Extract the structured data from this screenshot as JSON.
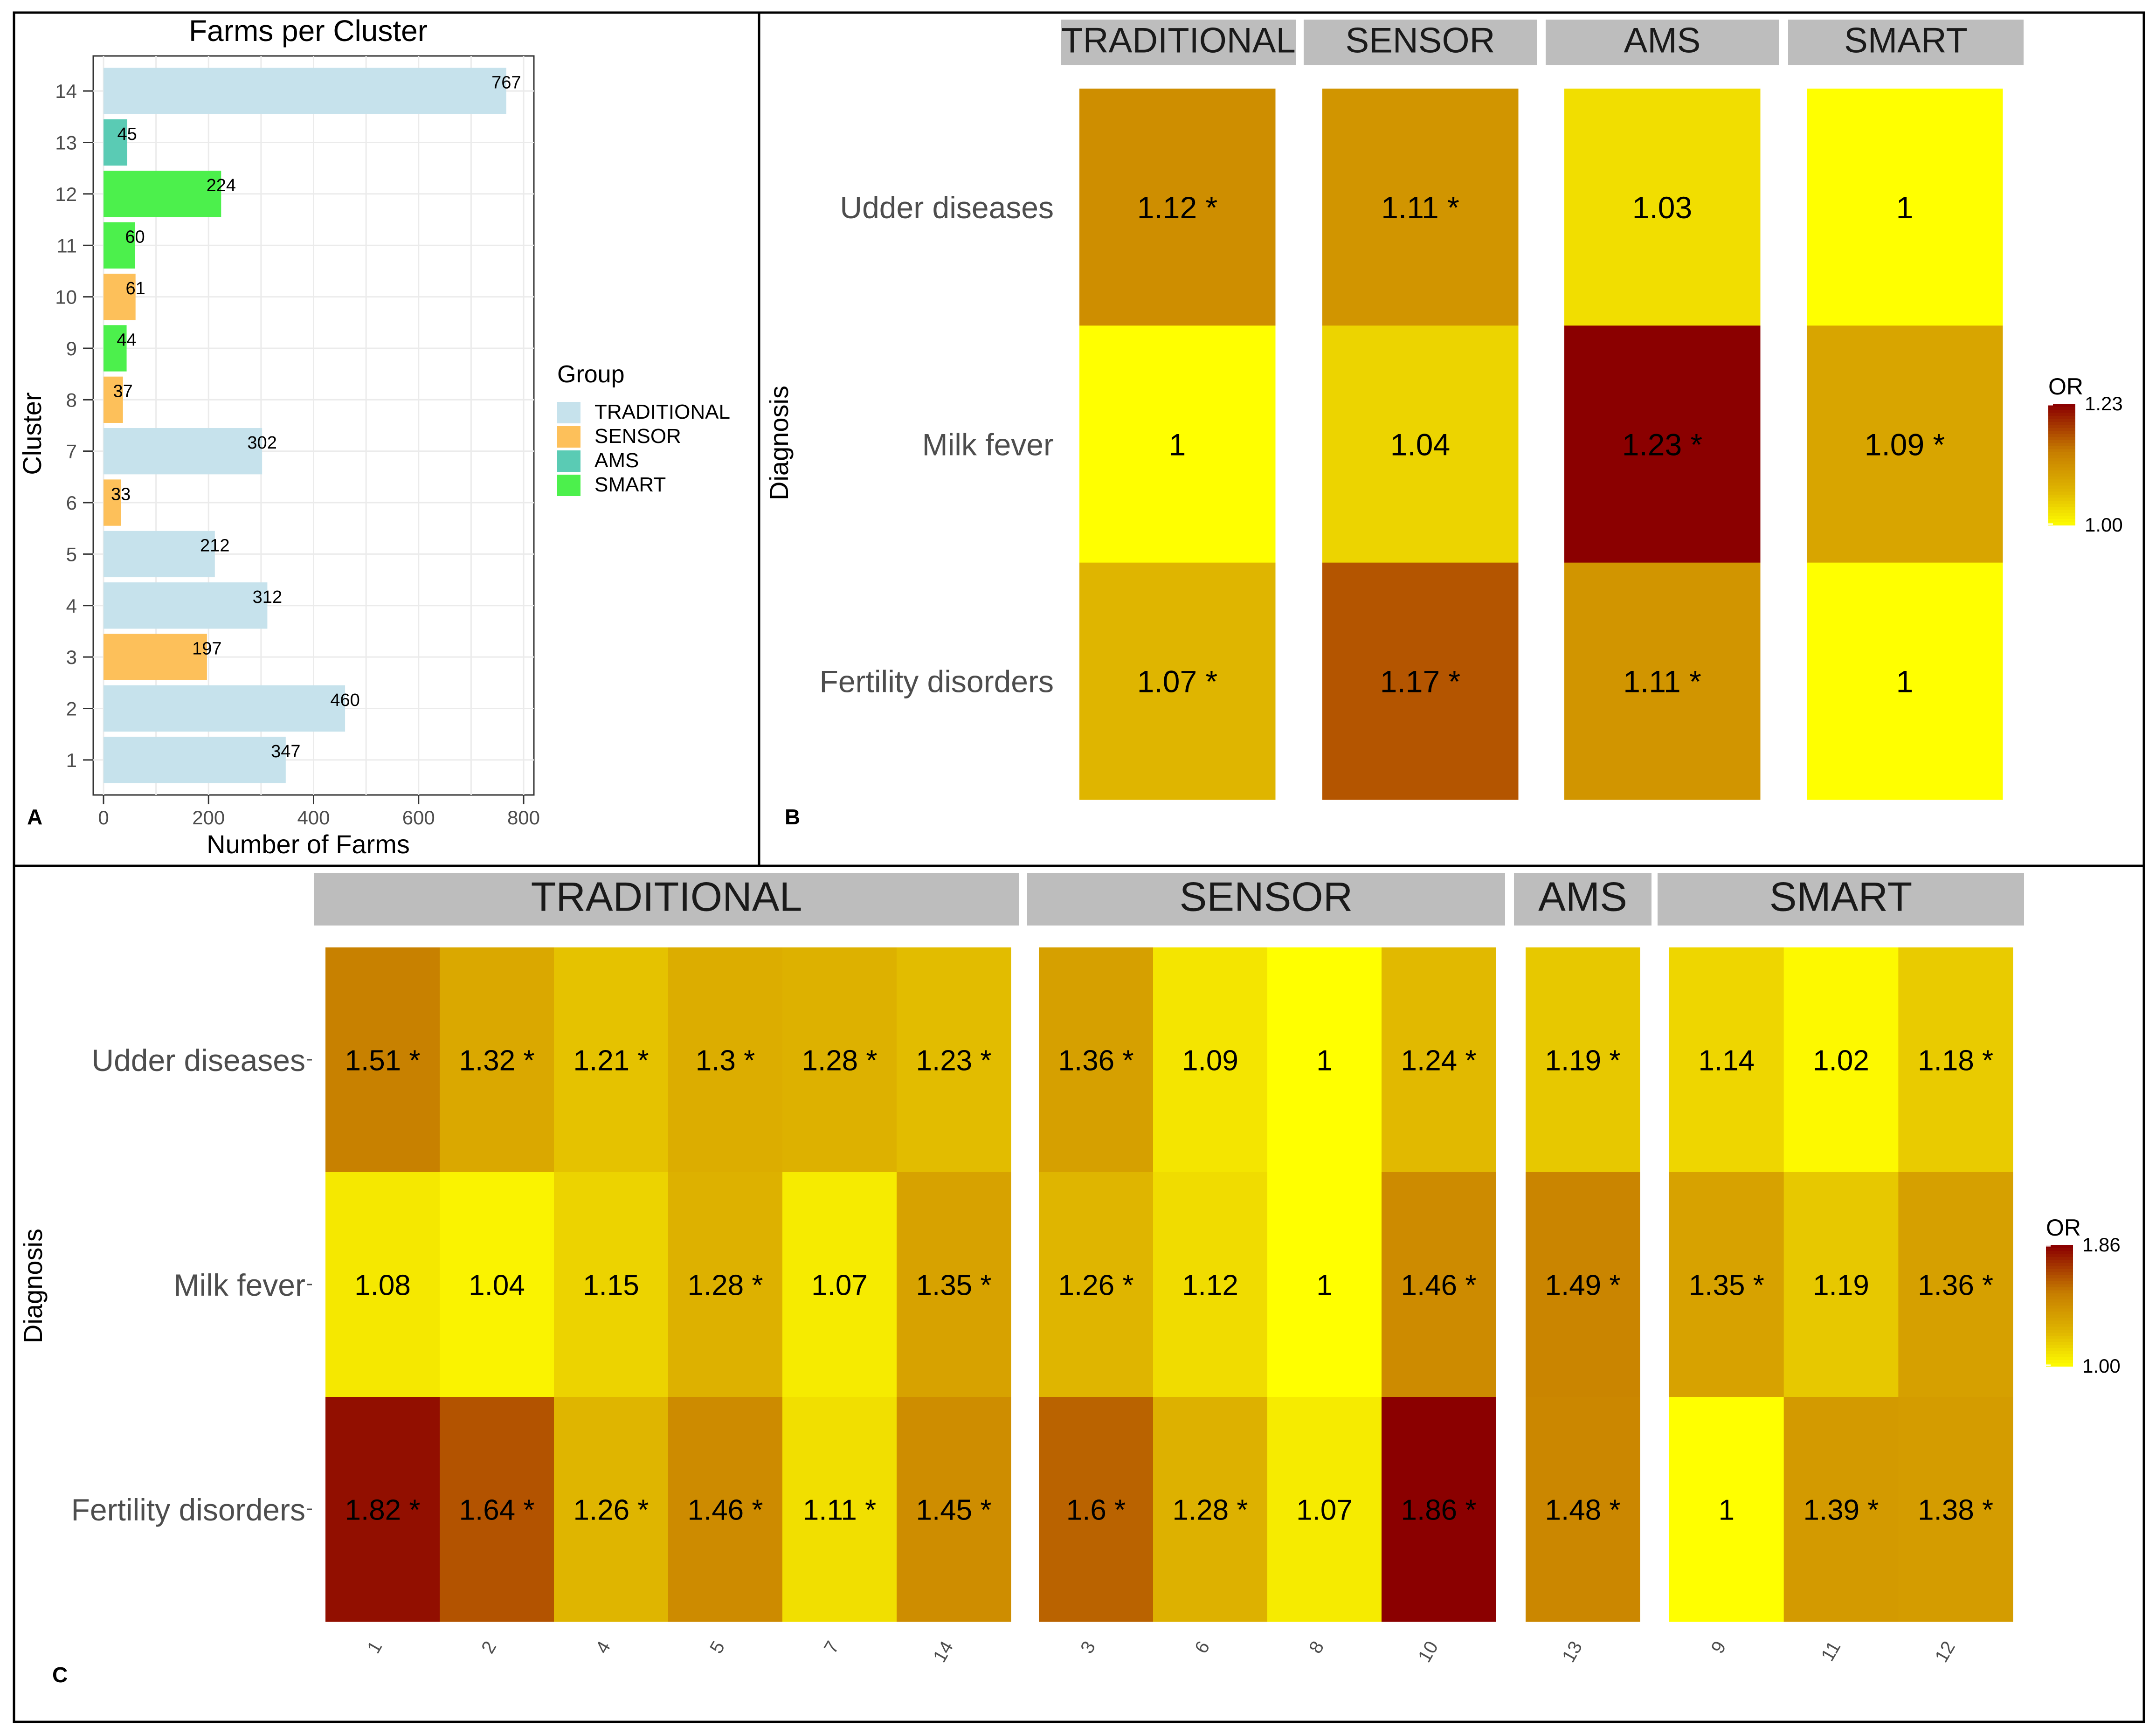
{
  "chart_data": [
    {
      "panel": "A",
      "type": "bar",
      "orientation": "horizontal",
      "title": "Farms per Cluster",
      "xlabel": "Number of Farms",
      "ylabel": "Cluster",
      "xlim": [
        0,
        800
      ],
      "xticks": [
        0,
        200,
        400,
        600,
        800
      ],
      "grid": true,
      "legend_title": "Group",
      "legend": [
        {
          "label": "TRADITIONAL",
          "color": "#c6e2ec"
        },
        {
          "label": "SENSOR",
          "color": "#fdc05a"
        },
        {
          "label": "AMS",
          "color": "#5acbb4"
        },
        {
          "label": "SMART",
          "color": "#4cf04c"
        }
      ],
      "bars": [
        {
          "cluster": "1",
          "value": 347,
          "group": "TRADITIONAL"
        },
        {
          "cluster": "2",
          "value": 460,
          "group": "TRADITIONAL"
        },
        {
          "cluster": "3",
          "value": 197,
          "group": "SENSOR"
        },
        {
          "cluster": "4",
          "value": 312,
          "group": "TRADITIONAL"
        },
        {
          "cluster": "5",
          "value": 212,
          "group": "TRADITIONAL"
        },
        {
          "cluster": "6",
          "value": 33,
          "group": "SENSOR"
        },
        {
          "cluster": "7",
          "value": 302,
          "group": "TRADITIONAL"
        },
        {
          "cluster": "8",
          "value": 37,
          "group": "SENSOR"
        },
        {
          "cluster": "9",
          "value": 44,
          "group": "SMART"
        },
        {
          "cluster": "10",
          "value": 61,
          "group": "SENSOR"
        },
        {
          "cluster": "11",
          "value": 60,
          "group": "SMART"
        },
        {
          "cluster": "12",
          "value": 224,
          "group": "SMART"
        },
        {
          "cluster": "13",
          "value": 45,
          "group": "AMS"
        },
        {
          "cluster": "14",
          "value": 767,
          "group": "TRADITIONAL"
        }
      ]
    },
    {
      "panel": "B",
      "type": "heatmap",
      "ylabel": "Diagnosis",
      "rows": [
        "Udder diseases",
        "Milk fever",
        "Fertility disorders"
      ],
      "legend_title": "OR",
      "scale": {
        "min": 1.0,
        "max": 1.23,
        "min_label": "1.00",
        "max_label": "1.23"
      },
      "facets": [
        {
          "name": "TRADITIONAL",
          "columns": [
            {
              "values": [
                1.12,
                1.0,
                1.07
              ],
              "labels": [
                "1.12 *",
                "1",
                "1.07 *"
              ]
            }
          ]
        },
        {
          "name": "SENSOR",
          "columns": [
            {
              "values": [
                1.11,
                1.04,
                1.17
              ],
              "labels": [
                "1.11 *",
                "1.04",
                "1.17 *"
              ]
            }
          ]
        },
        {
          "name": "AMS",
          "columns": [
            {
              "values": [
                1.03,
                1.23,
                1.11
              ],
              "labels": [
                "1.03",
                "1.23 *",
                "1.11 *"
              ]
            }
          ]
        },
        {
          "name": "SMART",
          "columns": [
            {
              "values": [
                1.0,
                1.09,
                1.0
              ],
              "labels": [
                "1",
                "1.09 *",
                "1"
              ]
            }
          ]
        }
      ]
    },
    {
      "panel": "C",
      "type": "heatmap",
      "ylabel": "Diagnosis",
      "rows": [
        "Udder diseases",
        "Milk fever",
        "Fertility disorders"
      ],
      "legend_title": "OR",
      "scale": {
        "min": 1.0,
        "max": 1.86,
        "min_label": "1.00",
        "max_label": "1.86"
      },
      "facets": [
        {
          "name": "TRADITIONAL",
          "columns": [
            {
              "cluster": "1",
              "values": [
                1.51,
                1.08,
                1.82
              ],
              "labels": [
                "1.51 *",
                "1.08",
                "1.82 *"
              ]
            },
            {
              "cluster": "2",
              "values": [
                1.32,
                1.04,
                1.64
              ],
              "labels": [
                "1.32 *",
                "1.04",
                "1.64 *"
              ]
            },
            {
              "cluster": "4",
              "values": [
                1.21,
                1.15,
                1.26
              ],
              "labels": [
                "1.21 *",
                "1.15",
                "1.26 *"
              ]
            },
            {
              "cluster": "5",
              "values": [
                1.3,
                1.28,
                1.46
              ],
              "labels": [
                "1.3 *",
                "1.28 *",
                "1.46 *"
              ]
            },
            {
              "cluster": "7",
              "values": [
                1.28,
                1.07,
                1.11
              ],
              "labels": [
                "1.28 *",
                "1.07",
                "1.11 *"
              ]
            },
            {
              "cluster": "14",
              "values": [
                1.23,
                1.35,
                1.45
              ],
              "labels": [
                "1.23 *",
                "1.35 *",
                "1.45 *"
              ]
            }
          ]
        },
        {
          "name": "SENSOR",
          "columns": [
            {
              "cluster": "3",
              "values": [
                1.36,
                1.26,
                1.6
              ],
              "labels": [
                "1.36 *",
                "1.26 *",
                "1.6 *"
              ]
            },
            {
              "cluster": "6",
              "values": [
                1.09,
                1.12,
                1.28
              ],
              "labels": [
                "1.09",
                "1.12",
                "1.28 *"
              ]
            },
            {
              "cluster": "8",
              "values": [
                1.0,
                1.0,
                1.07
              ],
              "labels": [
                "1",
                "1",
                "1.07"
              ]
            },
            {
              "cluster": "10",
              "values": [
                1.24,
                1.46,
                1.86
              ],
              "labels": [
                "1.24 *",
                "1.46 *",
                "1.86 *"
              ]
            }
          ]
        },
        {
          "name": "AMS",
          "columns": [
            {
              "cluster": "13",
              "values": [
                1.19,
                1.49,
                1.48
              ],
              "labels": [
                "1.19 *",
                "1.49 *",
                "1.48 *"
              ]
            }
          ]
        },
        {
          "name": "SMART",
          "columns": [
            {
              "cluster": "9",
              "values": [
                1.14,
                1.35,
                1.0
              ],
              "labels": [
                "1.14",
                "1.35 *",
                "1"
              ]
            },
            {
              "cluster": "11",
              "values": [
                1.02,
                1.19,
                1.39
              ],
              "labels": [
                "1.02",
                "1.19",
                "1.39 *"
              ]
            },
            {
              "cluster": "12",
              "values": [
                1.18,
                1.36,
                1.38
              ],
              "labels": [
                "1.18 *",
                "1.36 *",
                "1.38 *"
              ]
            }
          ]
        }
      ]
    }
  ],
  "panel_labels": {
    "a": "A",
    "b": "B",
    "c": "C"
  }
}
